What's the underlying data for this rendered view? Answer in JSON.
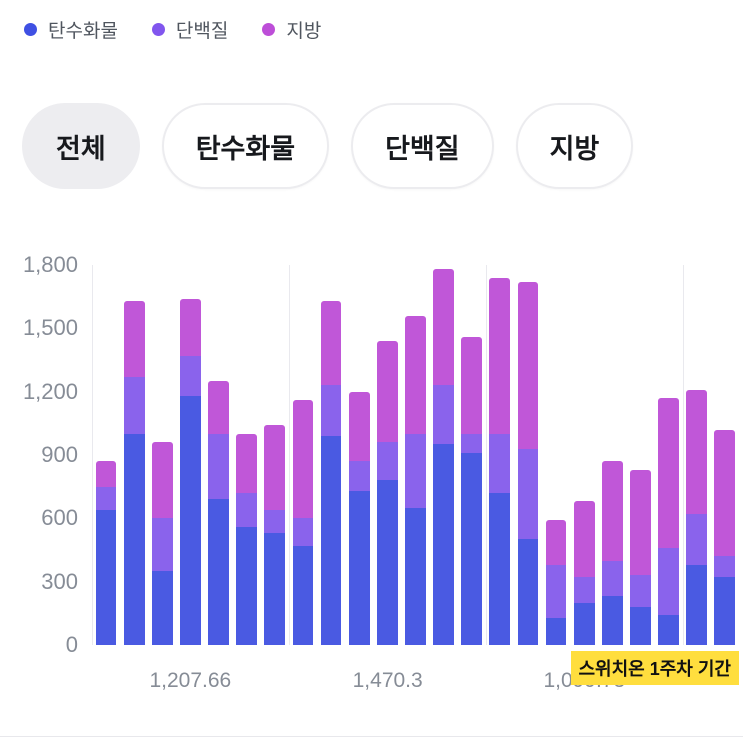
{
  "legend": {
    "items": [
      {
        "label": "탄수화물",
        "color": "#3f50e3"
      },
      {
        "label": "단백질",
        "color": "#8156ee"
      },
      {
        "label": "지방",
        "color": "#bd4ed8"
      }
    ]
  },
  "filters": {
    "options": [
      {
        "label": "전체",
        "selected": true
      },
      {
        "label": "탄수화물",
        "selected": false
      },
      {
        "label": "단백질",
        "selected": false
      },
      {
        "label": "지방",
        "selected": false
      }
    ]
  },
  "chart_data": {
    "type": "bar",
    "stacked": true,
    "series_names": [
      "탄수화물",
      "단백질",
      "지방"
    ],
    "colors": {
      "carb": "#4a5ae2",
      "protein": "#8a63ec",
      "fat": "#c057d8"
    },
    "ylim": [
      0,
      1800
    ],
    "yticks": [
      0,
      300,
      600,
      900,
      1200,
      1500,
      1800
    ],
    "ytick_labels": [
      "0",
      "300",
      "600",
      "900",
      "1,200",
      "1,500",
      "1,800"
    ],
    "bars": [
      {
        "carb": 640,
        "protein": 110,
        "fat": 120
      },
      {
        "carb": 1000,
        "protein": 270,
        "fat": 360
      },
      {
        "carb": 350,
        "protein": 250,
        "fat": 360
      },
      {
        "carb": 1180,
        "protein": 190,
        "fat": 270
      },
      {
        "carb": 690,
        "protein": 310,
        "fat": 250
      },
      {
        "carb": 560,
        "protein": 160,
        "fat": 280
      },
      {
        "carb": 530,
        "protein": 110,
        "fat": 400
      },
      {
        "carb": 470,
        "protein": 130,
        "fat": 560
      },
      {
        "carb": 990,
        "protein": 240,
        "fat": 400
      },
      {
        "carb": 730,
        "protein": 140,
        "fat": 330
      },
      {
        "carb": 780,
        "protein": 180,
        "fat": 480
      },
      {
        "carb": 650,
        "protein": 350,
        "fat": 560
      },
      {
        "carb": 950,
        "protein": 280,
        "fat": 550
      },
      {
        "carb": 910,
        "protein": 90,
        "fat": 460
      },
      {
        "carb": 720,
        "protein": 280,
        "fat": 740
      },
      {
        "carb": 500,
        "protein": 430,
        "fat": 790
      },
      {
        "carb": 130,
        "protein": 250,
        "fat": 210
      },
      {
        "carb": 200,
        "protein": 120,
        "fat": 360
      },
      {
        "carb": 230,
        "protein": 170,
        "fat": 470
      },
      {
        "carb": 180,
        "protein": 150,
        "fat": 500
      },
      {
        "carb": 140,
        "protein": 320,
        "fat": 710
      },
      {
        "carb": 380,
        "protein": 240,
        "fat": 590
      },
      {
        "carb": 320,
        "protein": 100,
        "fat": 600
      }
    ],
    "group_boundaries_after": [
      7,
      14,
      21
    ],
    "x_group_labels": [
      {
        "label": "1,207.66",
        "center_pct": 15.2
      },
      {
        "label": "1,470.3",
        "center_pct": 45.7
      },
      {
        "label": "1,099.73",
        "center_pct": 76.1
      }
    ],
    "annotation": {
      "text": "스위치온 1주차 기간",
      "bg": "#ffde3e",
      "text_color": "#111111"
    }
  }
}
